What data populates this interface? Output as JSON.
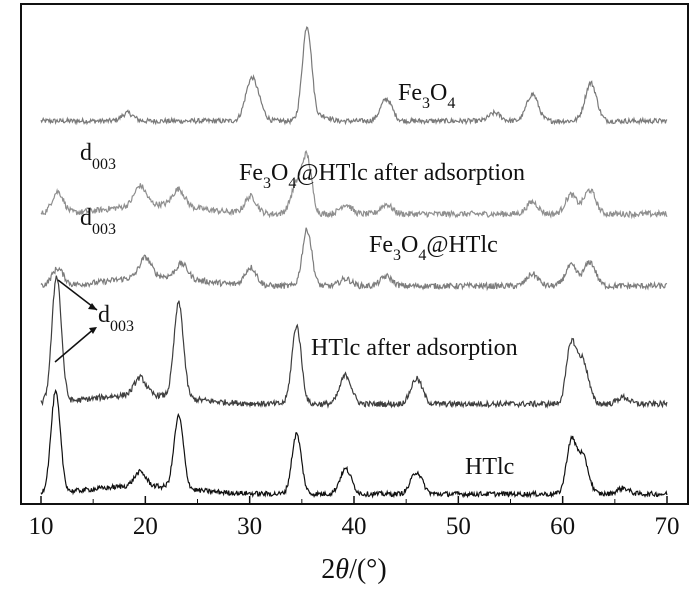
{
  "chart_data": {
    "type": "line",
    "title": "",
    "xlabel_prefix": "2",
    "xlabel_symbol": "θ",
    "xlabel_suffix": "/(°)",
    "ylabel": "",
    "xlim": [
      10,
      70
    ],
    "x_ticks": [
      10,
      20,
      30,
      40,
      50,
      60,
      70
    ],
    "yticks_shown": false,
    "grid": false,
    "legend": "none",
    "series": [
      {
        "key": "fe3o4",
        "color": "#7a7a7a",
        "label": {
          "base": "Fe",
          "sub1": "3",
          "mid": "O",
          "sub2": "4",
          "rest": ""
        },
        "peaks": [
          [
            18.3,
            0.08
          ],
          [
            30.1,
            0.36
          ],
          [
            30.8,
            0.14
          ],
          [
            35.5,
            0.95
          ],
          [
            37.1,
            0.05
          ],
          [
            43.1,
            0.22
          ],
          [
            53.5,
            0.08
          ],
          [
            57.1,
            0.27
          ],
          [
            62.7,
            0.38
          ]
        ]
      },
      {
        "key": "fe3o4_htlc_after_adsorption",
        "color": "#8f8f8f",
        "label": {
          "base": "Fe",
          "sub1": "3",
          "mid": "O",
          "sub2": "4",
          "rest": "@HTlc after adsorption"
        },
        "peaks": [
          [
            11.6,
            0.18
          ],
          [
            19.5,
            0.16
          ],
          [
            23.2,
            0.14
          ],
          [
            30.1,
            0.14
          ],
          [
            34.5,
            0.24
          ],
          [
            35.5,
            0.45
          ],
          [
            39.2,
            0.08
          ],
          [
            43.1,
            0.08
          ],
          [
            57.1,
            0.1
          ],
          [
            60.8,
            0.16
          ],
          [
            62.6,
            0.2
          ]
        ]
      },
      {
        "key": "fe3o4_htlc",
        "color": "#7d7d7d",
        "label": {
          "base": "Fe",
          "sub1": "3",
          "mid": "O",
          "sub2": "4",
          "rest": "@HTlc"
        },
        "peaks": [
          [
            11.6,
            0.14
          ],
          [
            20.0,
            0.16
          ],
          [
            23.5,
            0.12
          ],
          [
            30.1,
            0.15
          ],
          [
            35.5,
            0.47
          ],
          [
            39.2,
            0.06
          ],
          [
            43.1,
            0.08
          ],
          [
            57.1,
            0.1
          ],
          [
            60.8,
            0.17
          ],
          [
            62.6,
            0.2
          ]
        ]
      },
      {
        "key": "htlc_after_adsorption",
        "color": "#3e3e3e",
        "label": {
          "base": "HTlc after adsorption",
          "sub1": "",
          "mid": "",
          "sub2": "",
          "rest": ""
        },
        "peaks": [
          [
            11.5,
            1.1
          ],
          [
            19.5,
            0.15
          ],
          [
            23.2,
            0.82
          ],
          [
            34.5,
            0.68
          ],
          [
            39.2,
            0.25
          ],
          [
            46.0,
            0.22
          ],
          [
            60.8,
            0.5
          ],
          [
            61.9,
            0.38
          ],
          [
            65.8,
            0.06
          ]
        ]
      },
      {
        "key": "htlc",
        "color": "#111111",
        "label": {
          "base": "HTlc",
          "sub1": "",
          "mid": "",
          "sub2": "",
          "rest": ""
        },
        "peaks": [
          [
            11.4,
            1.0
          ],
          [
            19.5,
            0.14
          ],
          [
            23.2,
            0.72
          ],
          [
            34.5,
            0.6
          ],
          [
            39.2,
            0.25
          ],
          [
            46.0,
            0.22
          ],
          [
            60.8,
            0.5
          ],
          [
            61.9,
            0.38
          ],
          [
            65.8,
            0.06
          ]
        ]
      }
    ],
    "annotations": [
      {
        "text": "d",
        "sub": "003",
        "near": "fe3o4_htlc_after_adsorption"
      },
      {
        "text": "d",
        "sub": "003",
        "near": "fe3o4_htlc"
      },
      {
        "text": "d",
        "sub": "003",
        "near": "htlc_after_adsorption and htlc (two arrows)"
      }
    ]
  }
}
